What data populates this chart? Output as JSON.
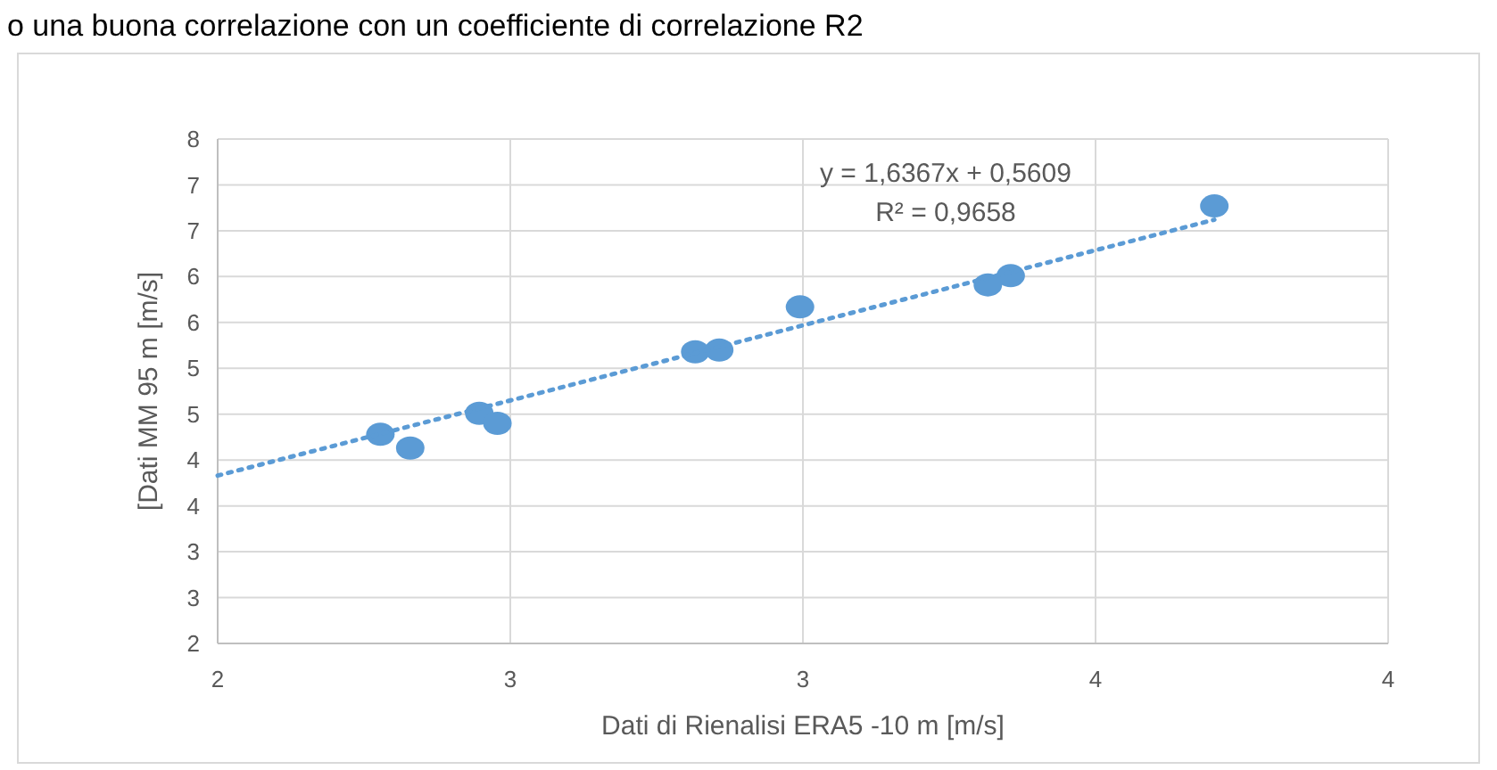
{
  "chart_data": {
    "type": "scatter",
    "xlabel": "Dati di Rienalisi ERA5 -10 m  [m/s]",
    "ylabel": "[Dati MM 95 m [m/s]",
    "annotations": [
      "o una buona correlazione con un coefficiente di correlazione R2",
      "y = 1,6367x + 0,5609",
      "R² = 0,9658"
    ],
    "series": [
      {
        "color": "#5b9bd5",
        "marker": "circle",
        "x": [
          2.278,
          2.329,
          2.447,
          2.478,
          2.816,
          2.857,
          2.995,
          3.316,
          3.355,
          3.703
        ],
        "values": [
          4.28,
          4.13,
          4.51,
          4.4,
          5.18,
          5.2,
          5.67,
          5.91,
          6.01,
          6.77
        ]
      },
      {
        "type": "line",
        "color": "#5b9bd5",
        "line_style": "dotted",
        "x": [
          2,
          3.703
        ],
        "values": [
          3.83,
          6.62
        ]
      }
    ],
    "xlim": [
      2,
      4
    ],
    "xticks": [
      2,
      {
        "value": 2.5,
        "label": "3"
      },
      3,
      {
        "value": 3.5,
        "label": "4"
      },
      4
    ],
    "ylim": [
      2,
      7.5
    ],
    "yticks": [
      2,
      {
        "value": 2.5,
        "label": "3"
      },
      3,
      {
        "value": 3.5,
        "label": "4"
      },
      4,
      {
        "value": 4.5,
        "label": "5"
      },
      5,
      {
        "value": 5.5,
        "label": "6"
      },
      6,
      {
        "value": 6.5,
        "label": "7"
      },
      7,
      {
        "value": 7.5,
        "label": "8"
      }
    ],
    "grid": true
  }
}
